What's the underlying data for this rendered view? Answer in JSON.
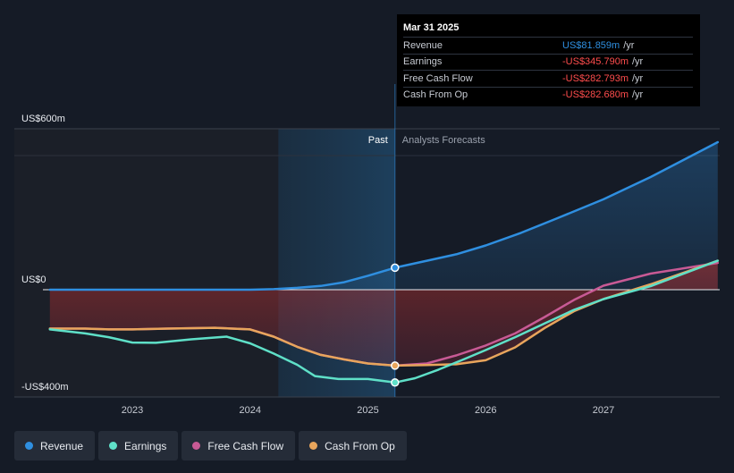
{
  "chart_data": {
    "type": "line",
    "y_axis": {
      "labels": [
        "US$600m",
        "US$0",
        "-US$400m"
      ],
      "ylim": [
        -400,
        600
      ]
    },
    "x_axis": {
      "ticks": [
        "2023",
        "2024",
        "2025",
        "2026",
        "2027"
      ],
      "xlim": [
        2022.3,
        2027.97
      ]
    },
    "past_label": "Past",
    "forecast_label": "Analysts Forecasts",
    "past_shade_start": 2024.24,
    "divider_x": 2025.23,
    "series": [
      {
        "name": "Revenue",
        "color": "#2f8fe0",
        "points": [
          [
            2022.3,
            0
          ],
          [
            2023.0,
            0
          ],
          [
            2023.5,
            0
          ],
          [
            2024.0,
            0
          ],
          [
            2024.2,
            2
          ],
          [
            2024.4,
            7
          ],
          [
            2024.6,
            14
          ],
          [
            2024.8,
            28
          ],
          [
            2025.0,
            52
          ],
          [
            2025.23,
            82
          ],
          [
            2025.5,
            108
          ],
          [
            2025.75,
            132
          ],
          [
            2026.0,
            165
          ],
          [
            2026.3,
            212
          ],
          [
            2026.6,
            265
          ],
          [
            2027.0,
            337
          ],
          [
            2027.4,
            420
          ],
          [
            2027.97,
            550
          ]
        ]
      },
      {
        "name": "Earnings",
        "color": "#5fe0c8",
        "points": [
          [
            2022.3,
            -148
          ],
          [
            2022.6,
            -163
          ],
          [
            2022.8,
            -177
          ],
          [
            2023.0,
            -197
          ],
          [
            2023.2,
            -198
          ],
          [
            2023.5,
            -185
          ],
          [
            2023.8,
            -175
          ],
          [
            2024.0,
            -200
          ],
          [
            2024.2,
            -238
          ],
          [
            2024.4,
            -280
          ],
          [
            2024.55,
            -322
          ],
          [
            2024.75,
            -333
          ],
          [
            2025.0,
            -333
          ],
          [
            2025.23,
            -346
          ],
          [
            2025.4,
            -330
          ],
          [
            2025.6,
            -298
          ],
          [
            2025.8,
            -262
          ],
          [
            2026.0,
            -225
          ],
          [
            2026.25,
            -177
          ],
          [
            2026.5,
            -126
          ],
          [
            2026.75,
            -75
          ],
          [
            2027.0,
            -35
          ],
          [
            2027.4,
            13
          ],
          [
            2027.97,
            108
          ]
        ]
      },
      {
        "name": "Free Cash Flow",
        "color": "#c85a95",
        "points": [
          [
            2022.3,
            -145
          ],
          [
            2022.6,
            -145
          ],
          [
            2022.8,
            -148
          ],
          [
            2023.0,
            -148
          ],
          [
            2023.3,
            -145
          ],
          [
            2023.7,
            -142
          ],
          [
            2024.0,
            -148
          ],
          [
            2024.2,
            -175
          ],
          [
            2024.4,
            -213
          ],
          [
            2024.6,
            -243
          ],
          [
            2024.8,
            -260
          ],
          [
            2025.0,
            -275
          ],
          [
            2025.23,
            -283
          ],
          [
            2025.5,
            -275
          ],
          [
            2025.75,
            -245
          ],
          [
            2026.0,
            -208
          ],
          [
            2026.25,
            -163
          ],
          [
            2026.5,
            -102
          ],
          [
            2026.75,
            -38
          ],
          [
            2027.0,
            15
          ],
          [
            2027.4,
            60
          ],
          [
            2027.97,
            100
          ]
        ]
      },
      {
        "name": "Cash From Op",
        "color": "#e8a55c",
        "points": [
          [
            2022.3,
            -145
          ],
          [
            2022.6,
            -145
          ],
          [
            2022.8,
            -148
          ],
          [
            2023.0,
            -148
          ],
          [
            2023.3,
            -145
          ],
          [
            2023.7,
            -142
          ],
          [
            2024.0,
            -148
          ],
          [
            2024.2,
            -175
          ],
          [
            2024.4,
            -213
          ],
          [
            2024.6,
            -243
          ],
          [
            2024.8,
            -260
          ],
          [
            2025.0,
            -275
          ],
          [
            2025.23,
            -283
          ],
          [
            2025.5,
            -281
          ],
          [
            2025.75,
            -278
          ],
          [
            2026.0,
            -263
          ],
          [
            2026.25,
            -215
          ],
          [
            2026.5,
            -143
          ],
          [
            2026.75,
            -80
          ],
          [
            2027.0,
            -35
          ],
          [
            2027.4,
            20
          ],
          [
            2027.97,
            108
          ]
        ]
      }
    ]
  },
  "tooltip": {
    "date": "Mar 31 2025",
    "unit": "/yr",
    "rows": [
      {
        "name": "Revenue",
        "value": "US$81.859m"
      },
      {
        "name": "Earnings",
        "value": "-US$345.790m"
      },
      {
        "name": "Free Cash Flow",
        "value": "-US$282.793m"
      },
      {
        "name": "Cash From Op",
        "value": "-US$282.680m"
      }
    ]
  },
  "legend": [
    {
      "label": "Revenue",
      "color": "#2f8fe0"
    },
    {
      "label": "Earnings",
      "color": "#5fe0c8"
    },
    {
      "label": "Free Cash Flow",
      "color": "#c85a95"
    },
    {
      "label": "Cash From Op",
      "color": "#e8a55c"
    }
  ]
}
